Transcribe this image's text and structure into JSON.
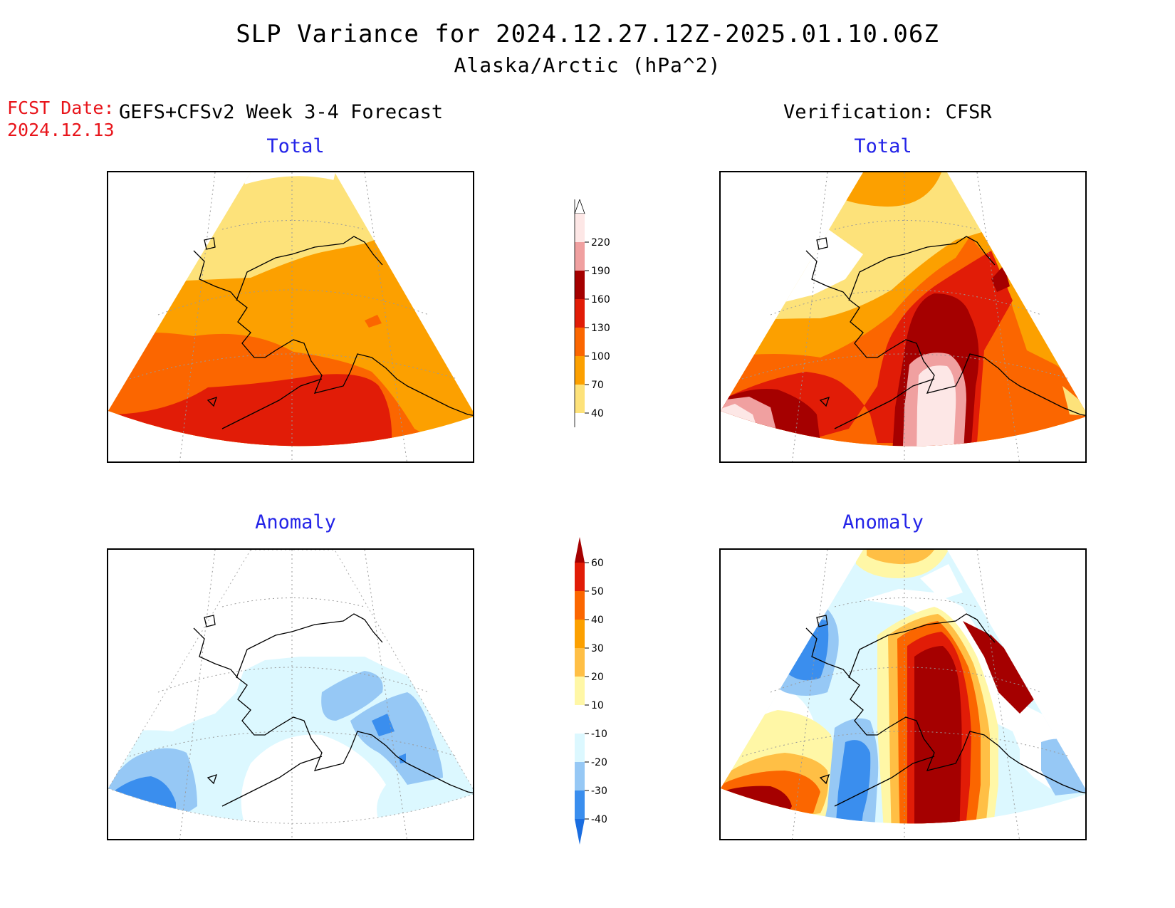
{
  "header": {
    "title": "SLP Variance for 2024.12.27.12Z-2025.01.10.06Z",
    "subtitle": "Alaska/Arctic (hPa^2)",
    "fcst_label": "FCST Date:",
    "fcst_date": "2024.12.13",
    "left_column_title": "GEFS+CFSv2 Week 3-4 Forecast",
    "right_column_title": "Verification: CFSR"
  },
  "panels": {
    "fcst_total_title": "Total",
    "verif_total_title": "Total",
    "fcst_anom_title": "Anomaly",
    "verif_anom_title": "Anomaly"
  },
  "colorbars": {
    "total": {
      "labels": [
        "40",
        "70",
        "100",
        "130",
        "160",
        "190",
        "220"
      ],
      "colors": [
        "#fde27a",
        "#fca000",
        "#fb6600",
        "#e11c07",
        "#a50000",
        "#f0a0a0",
        "#fde7e6"
      ]
    },
    "anomaly": {
      "labels": [
        "-40",
        "-30",
        "-20",
        "-10",
        "10",
        "20",
        "30",
        "40",
        "50",
        "60"
      ],
      "colors": [
        "#1a6de0",
        "#3a8eee",
        "#96c8f5",
        "#dcf8ff",
        "#ffffff",
        "#fff7a6",
        "#ffbf45",
        "#fca000",
        "#fb6600",
        "#e11c07",
        "#a50000"
      ]
    }
  }
}
